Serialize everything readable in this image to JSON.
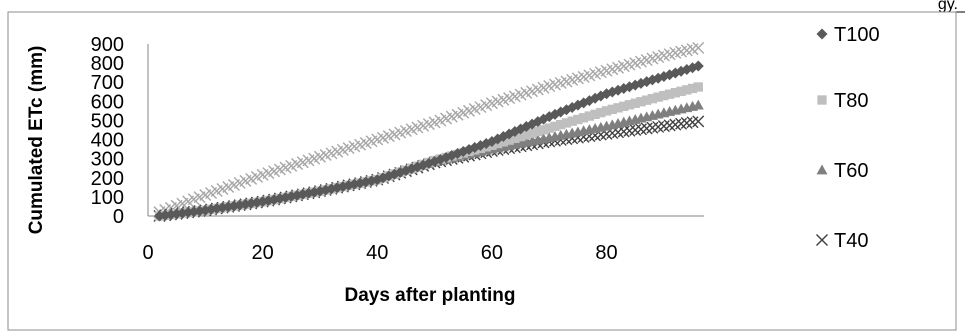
{
  "header_fragment": "gy.",
  "chart_data": {
    "type": "scatter",
    "title": "",
    "xlabel": "Days after planting",
    "ylabel": "Cumulated ETc (mm)",
    "xlim": [
      0,
      100
    ],
    "ylim": [
      0,
      900
    ],
    "x_ticks": [
      "0",
      "20",
      "40",
      "60",
      "80"
    ],
    "y_ticks": [
      "900",
      "800",
      "700",
      "600",
      "500",
      "400",
      "300",
      "200",
      "100",
      "0"
    ],
    "grid": false,
    "legend_position": "right",
    "series": [
      {
        "name": "T100",
        "marker": "diamond",
        "color": "#595959",
        "x": [
          2,
          10,
          20,
          30,
          40,
          50,
          60,
          70,
          80,
          90,
          96
        ],
        "y": [
          0,
          30,
          75,
          130,
          190,
          285,
          390,
          520,
          640,
          730,
          785
        ]
      },
      {
        "name": "T80",
        "marker": "square",
        "color": "#bfbfbf",
        "x": [
          2,
          10,
          20,
          30,
          40,
          50,
          60,
          70,
          80,
          90,
          96
        ],
        "y": [
          0,
          30,
          75,
          130,
          190,
          290,
          370,
          460,
          550,
          630,
          675
        ]
      },
      {
        "name": "T60",
        "marker": "triangle",
        "color": "#7f7f7f",
        "x": [
          2,
          10,
          20,
          30,
          40,
          50,
          60,
          70,
          80,
          90,
          96
        ],
        "y": [
          0,
          30,
          75,
          130,
          190,
          285,
          350,
          410,
          470,
          540,
          580
        ]
      },
      {
        "name": "T40",
        "marker": "x",
        "color": "#404040",
        "x": [
          2,
          10,
          20,
          30,
          40,
          50,
          60,
          70,
          80,
          90,
          96
        ],
        "y": [
          0,
          30,
          75,
          130,
          190,
          280,
          340,
          390,
          430,
          470,
          495
        ]
      },
      {
        "name": "",
        "marker": "x",
        "color": "#a6a6a6",
        "x": [
          2,
          10,
          20,
          30,
          40,
          50,
          60,
          70,
          80,
          90,
          96
        ],
        "y": [
          20,
          110,
          215,
          310,
          400,
          490,
          590,
          680,
          760,
          840,
          880
        ]
      }
    ]
  }
}
